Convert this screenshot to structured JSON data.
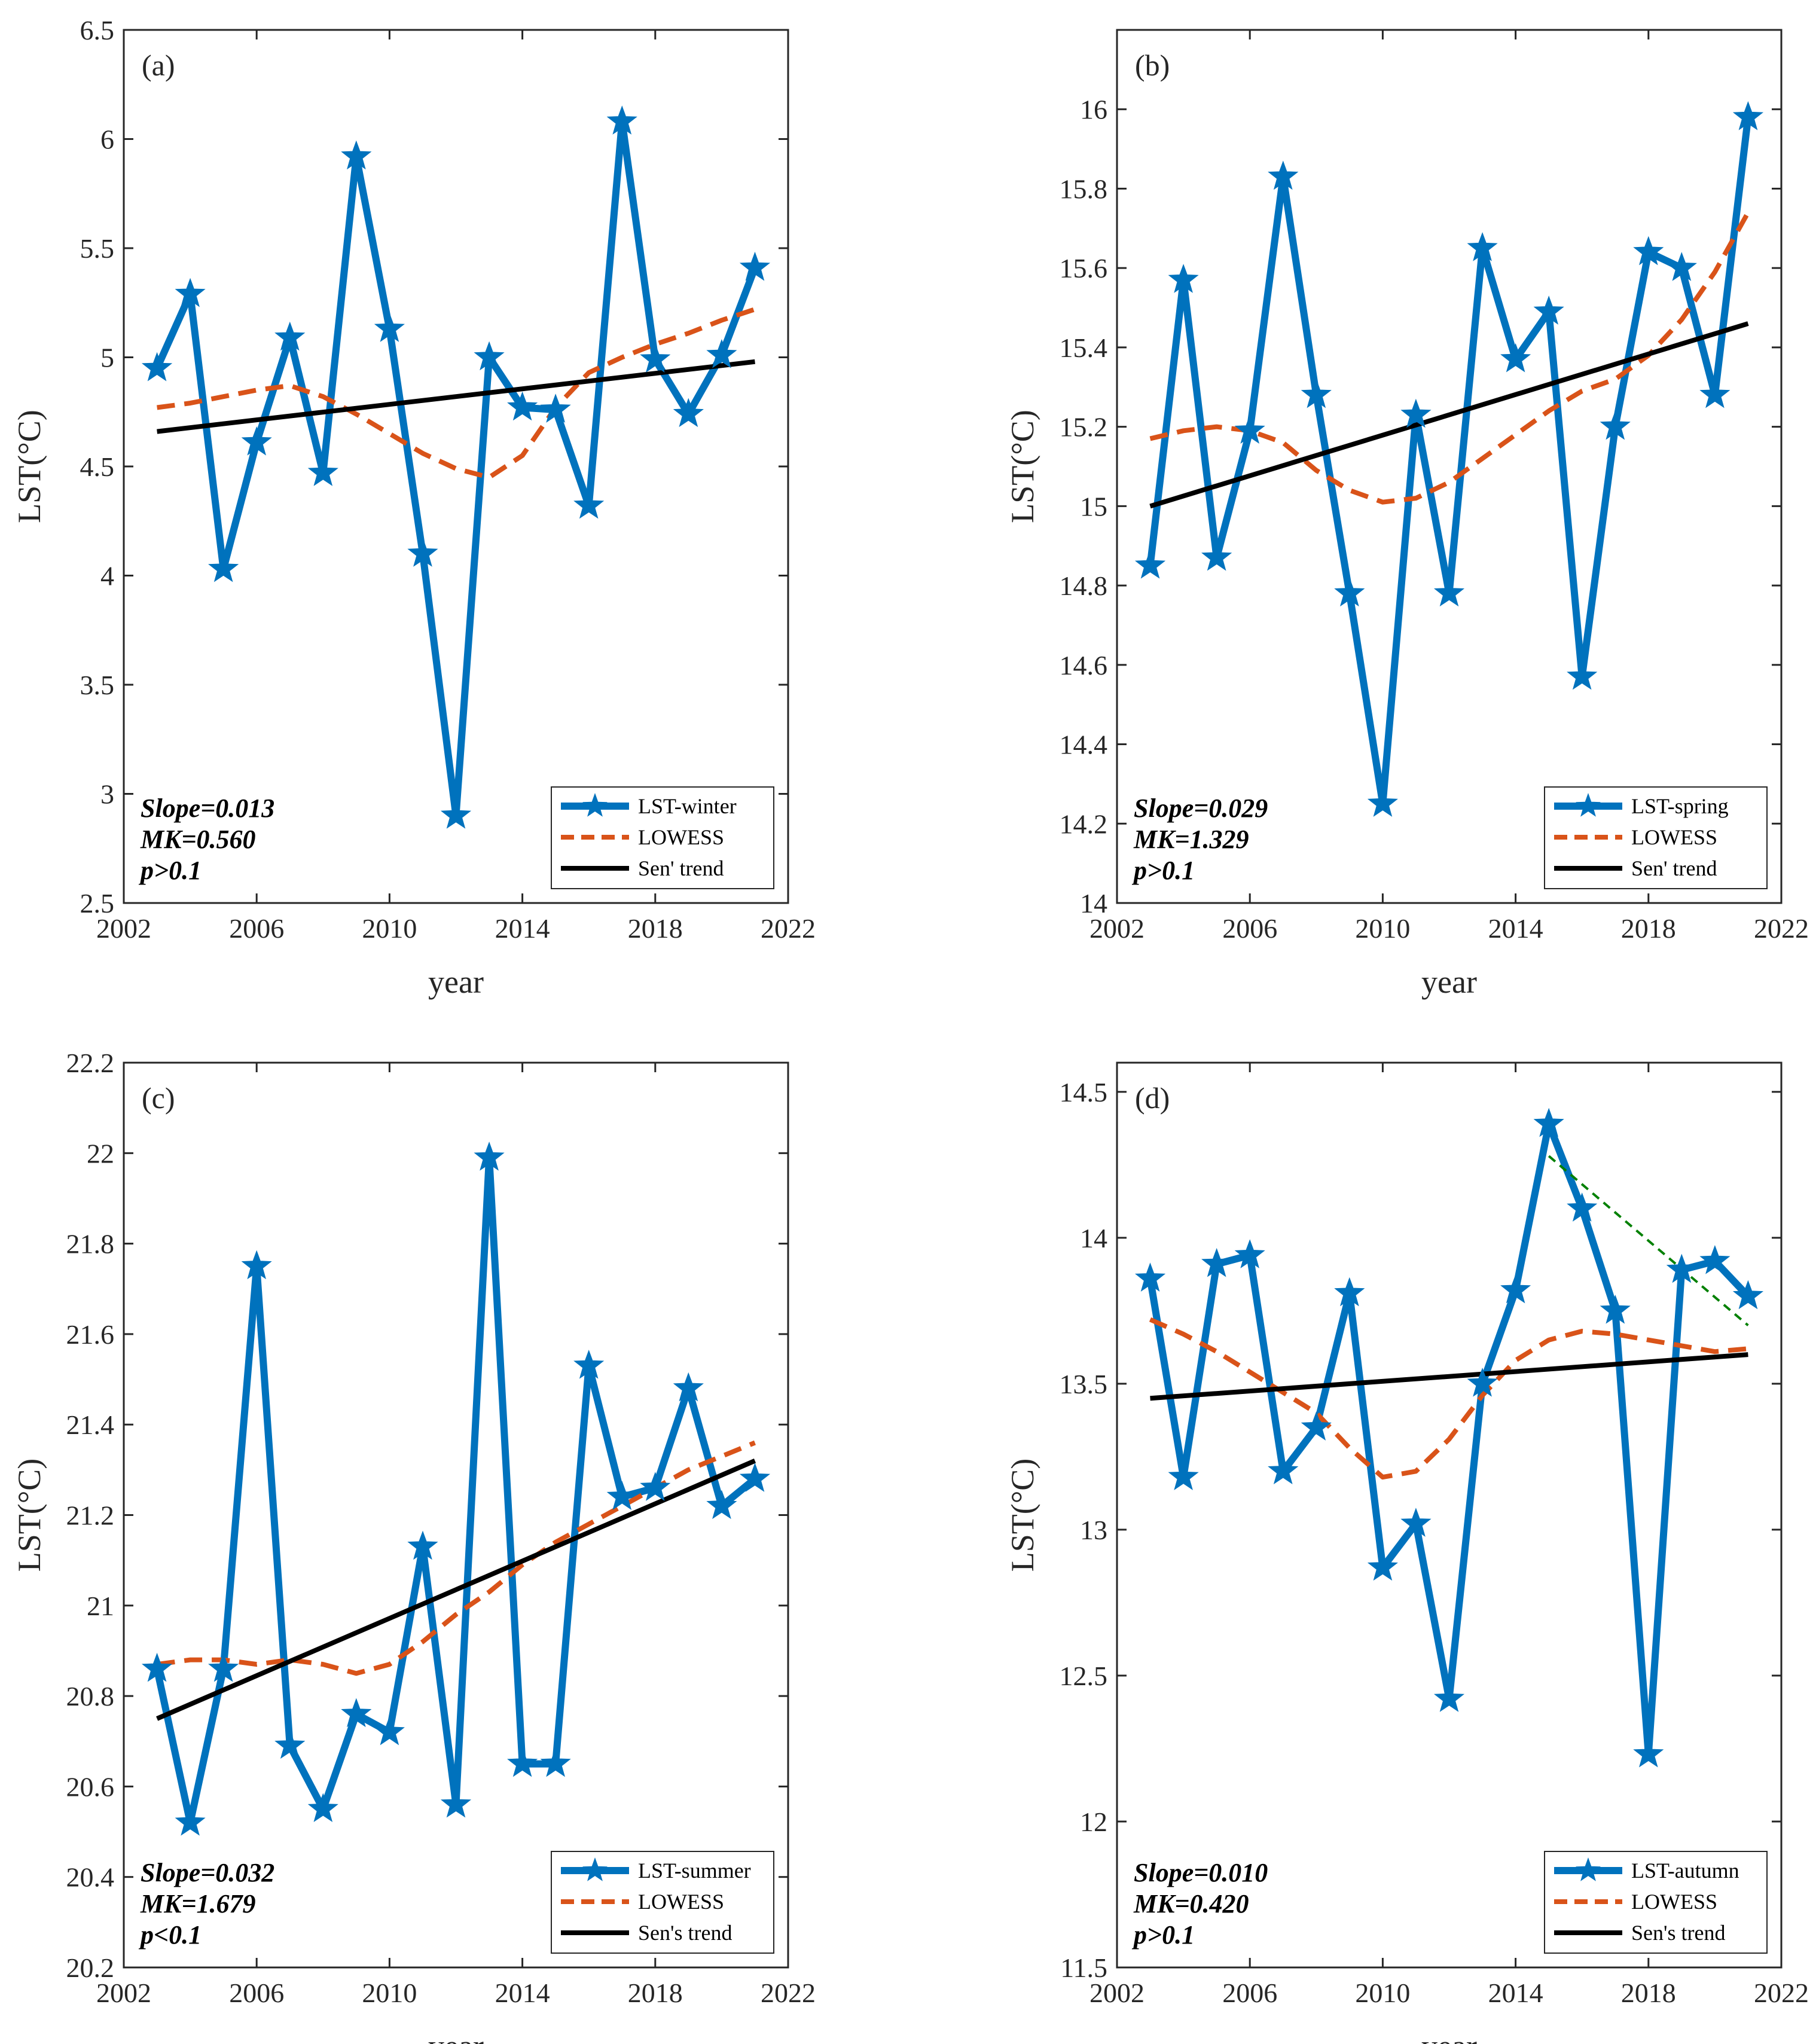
{
  "chart_data": [
    {
      "type": "line",
      "panel_label": "(a)",
      "xlabel": "year",
      "ylabel": "LST(°C)",
      "xlim": [
        2002,
        2022
      ],
      "ylim": [
        2.5,
        6.5
      ],
      "xticks": [
        2002,
        2006,
        2010,
        2014,
        2018,
        2022
      ],
      "xtick_labels": [
        "2002",
        "2006",
        "2010",
        "2014",
        "2018",
        "2022"
      ],
      "yticks": [
        2.5,
        3,
        3.5,
        4,
        4.5,
        5,
        5.5,
        6,
        6.5
      ],
      "ytick_labels": [
        "2.5",
        "3",
        "3.5",
        "4",
        "4.5",
        "5",
        "5.5",
        "6",
        "6.5"
      ],
      "legend_position": "bottom-right",
      "annotation": [
        "Slope=0.013",
        "MK=0.560",
        "p>0.1"
      ],
      "series": [
        {
          "name": "LST-winter",
          "style": "line-star",
          "color": "#0072BD",
          "x": [
            2003,
            2004,
            2005,
            2006,
            2007,
            2008,
            2009,
            2010,
            2011,
            2012,
            2013,
            2014,
            2015,
            2016,
            2017,
            2018,
            2019,
            2020,
            2021
          ],
          "y": [
            4.95,
            5.29,
            4.03,
            4.61,
            5.09,
            4.47,
            5.92,
            5.13,
            4.1,
            2.9,
            5.0,
            4.77,
            4.76,
            4.32,
            6.08,
            4.99,
            4.74,
            5.01,
            5.41
          ]
        },
        {
          "name": "LOWESS",
          "style": "dashed",
          "color": "#D95319",
          "x": [
            2003,
            2004,
            2005,
            2006,
            2007,
            2008,
            2009,
            2010,
            2011,
            2012,
            2013,
            2014,
            2015,
            2016,
            2017,
            2018,
            2019,
            2020,
            2021
          ],
          "y": [
            4.77,
            4.79,
            4.82,
            4.85,
            4.87,
            4.82,
            4.74,
            4.65,
            4.56,
            4.49,
            4.45,
            4.55,
            4.77,
            4.93,
            5.0,
            5.06,
            5.11,
            5.17,
            5.22
          ]
        },
        {
          "name": "Sen' trend",
          "style": "solid",
          "color": "#000000",
          "x": [
            2003,
            2021
          ],
          "y": [
            4.66,
            4.98
          ]
        }
      ]
    },
    {
      "type": "line",
      "panel_label": "(b)",
      "xlabel": "year",
      "ylabel": "LST(°C)",
      "xlim": [
        2002,
        2022
      ],
      "ylim": [
        14,
        16.2
      ],
      "xticks": [
        2002,
        2006,
        2010,
        2014,
        2018,
        2022
      ],
      "xtick_labels": [
        "2002",
        "2006",
        "2010",
        "2014",
        "2018",
        "2022"
      ],
      "yticks": [
        14,
        14.2,
        14.4,
        14.6,
        14.8,
        15,
        15.2,
        15.4,
        15.6,
        15.8,
        16
      ],
      "ytick_labels": [
        "14",
        "14.2",
        "14.4",
        "14.6",
        "14.8",
        "15",
        "15.2",
        "15.4",
        "15.6",
        "15.8",
        "16"
      ],
      "legend_position": "bottom-right",
      "annotation": [
        "Slope=0.029",
        "MK=1.329",
        " p>0.1"
      ],
      "series": [
        {
          "name": "LST-spring",
          "style": "line-star",
          "color": "#0072BD",
          "x": [
            2003,
            2004,
            2005,
            2006,
            2007,
            2008,
            2009,
            2010,
            2011,
            2012,
            2013,
            2014,
            2015,
            2016,
            2017,
            2018,
            2019,
            2020,
            2021
          ],
          "y": [
            14.85,
            15.57,
            14.87,
            15.19,
            15.83,
            15.28,
            14.78,
            14.25,
            15.23,
            14.78,
            15.65,
            15.37,
            15.49,
            14.57,
            15.2,
            15.64,
            15.6,
            15.28,
            15.98
          ]
        },
        {
          "name": "LOWESS",
          "style": "dashed",
          "color": "#D95319",
          "x": [
            2003,
            2004,
            2005,
            2006,
            2007,
            2008,
            2009,
            2010,
            2011,
            2012,
            2013,
            2014,
            2015,
            2016,
            2017,
            2018,
            2019,
            2020,
            2021
          ],
          "y": [
            15.17,
            15.19,
            15.2,
            15.19,
            15.16,
            15.09,
            15.04,
            15.01,
            15.02,
            15.06,
            15.12,
            15.18,
            15.24,
            15.29,
            15.32,
            15.38,
            15.47,
            15.59,
            15.74
          ]
        },
        {
          "name": "Sen' trend",
          "style": "solid",
          "color": "#000000",
          "x": [
            2003,
            2021
          ],
          "y": [
            15.0,
            15.46
          ]
        }
      ]
    },
    {
      "type": "line",
      "panel_label": "(c)",
      "xlabel": "year",
      "ylabel": "LST(°C)",
      "xlim": [
        2002,
        2022
      ],
      "ylim": [
        20.2,
        22.2
      ],
      "xticks": [
        2002,
        2006,
        2010,
        2014,
        2018,
        2022
      ],
      "xtick_labels": [
        "2002",
        "2006",
        "2010",
        "2014",
        "2018",
        "2022"
      ],
      "yticks": [
        20.2,
        20.4,
        20.6,
        20.8,
        21,
        21.2,
        21.4,
        21.6,
        21.8,
        22,
        22.2
      ],
      "ytick_labels": [
        "20.2",
        "20.4",
        "20.6",
        "20.8",
        "21",
        "21.2",
        "21.4",
        "21.6",
        "21.8",
        "22",
        "22.2"
      ],
      "legend_position": "bottom-right",
      "annotation": [
        "Slope=0.032",
        "MK=1.679",
        " p<0.1"
      ],
      "series": [
        {
          "name": "LST-summer",
          "style": "line-star",
          "color": "#0072BD",
          "x": [
            2003,
            2004,
            2005,
            2006,
            2007,
            2008,
            2009,
            2010,
            2011,
            2012,
            2013,
            2014,
            2015,
            2016,
            2017,
            2018,
            2019,
            2020,
            2021
          ],
          "y": [
            20.86,
            20.52,
            20.86,
            21.75,
            20.69,
            20.55,
            20.76,
            20.72,
            21.13,
            20.56,
            21.99,
            20.65,
            20.65,
            21.53,
            21.24,
            21.26,
            21.48,
            21.22,
            21.28
          ]
        },
        {
          "name": "LOWESS",
          "style": "dashed",
          "color": "#D95319",
          "x": [
            2003,
            2004,
            2005,
            2006,
            2007,
            2008,
            2009,
            2010,
            2011,
            2012,
            2013,
            2014,
            2015,
            2016,
            2017,
            2018,
            2019,
            2020,
            2021
          ],
          "y": [
            20.87,
            20.88,
            20.88,
            20.87,
            20.88,
            20.87,
            20.85,
            20.87,
            20.92,
            20.98,
            21.03,
            21.09,
            21.14,
            21.18,
            21.22,
            21.26,
            21.3,
            21.33,
            21.36
          ]
        },
        {
          "name": "Sen's trend",
          "style": "solid",
          "color": "#000000",
          "x": [
            2003,
            2021
          ],
          "y": [
            20.75,
            21.32
          ]
        }
      ]
    },
    {
      "type": "line",
      "panel_label": "(d)",
      "xlabel": "year",
      "ylabel": "LST(°C)",
      "xlim": [
        2002,
        2022
      ],
      "ylim": [
        11.5,
        14.6
      ],
      "xticks": [
        2002,
        2006,
        2010,
        2014,
        2018,
        2022
      ],
      "xtick_labels": [
        "2002",
        "2006",
        "2010",
        "2014",
        "2018",
        "2022"
      ],
      "yticks": [
        11.5,
        12,
        12.5,
        13,
        13.5,
        14,
        14.5
      ],
      "ytick_labels": [
        "11.5",
        "12",
        "12.5",
        "13",
        "13.5",
        "14",
        "14.5"
      ],
      "legend_position": "bottom-right",
      "annotation": [
        "Slope=0.010",
        "MK=0.420",
        "p>0.1"
      ],
      "series": [
        {
          "name": "LST-autumn",
          "style": "line-star",
          "color": "#0072BD",
          "x": [
            2003,
            2004,
            2005,
            2006,
            2007,
            2008,
            2009,
            2010,
            2011,
            2012,
            2013,
            2014,
            2015,
            2016,
            2017,
            2018,
            2019,
            2020,
            2021
          ],
          "y": [
            13.86,
            13.18,
            13.91,
            13.94,
            13.2,
            13.35,
            13.81,
            12.87,
            13.02,
            12.42,
            13.5,
            13.82,
            14.39,
            14.1,
            13.75,
            12.23,
            13.89,
            13.92,
            13.8
          ]
        },
        {
          "name": "LOWESS",
          "style": "dashed",
          "color": "#D95319",
          "x": [
            2003,
            2004,
            2005,
            2006,
            2007,
            2008,
            2009,
            2010,
            2011,
            2012,
            2013,
            2014,
            2015,
            2016,
            2017,
            2018,
            2019,
            2020,
            2021
          ],
          "y": [
            13.72,
            13.67,
            13.61,
            13.54,
            13.47,
            13.4,
            13.28,
            13.18,
            13.2,
            13.31,
            13.46,
            13.58,
            13.65,
            13.68,
            13.67,
            13.65,
            13.63,
            13.61,
            13.62
          ]
        },
        {
          "name": "Sen's trend",
          "style": "solid",
          "color": "#000000",
          "x": [
            2003,
            2021
          ],
          "y": [
            13.45,
            13.6
          ]
        },
        {
          "style": "dashed-thin",
          "color": "#008000",
          "x": [
            2015,
            2021
          ],
          "y": [
            14.28,
            13.7
          ]
        }
      ]
    }
  ]
}
